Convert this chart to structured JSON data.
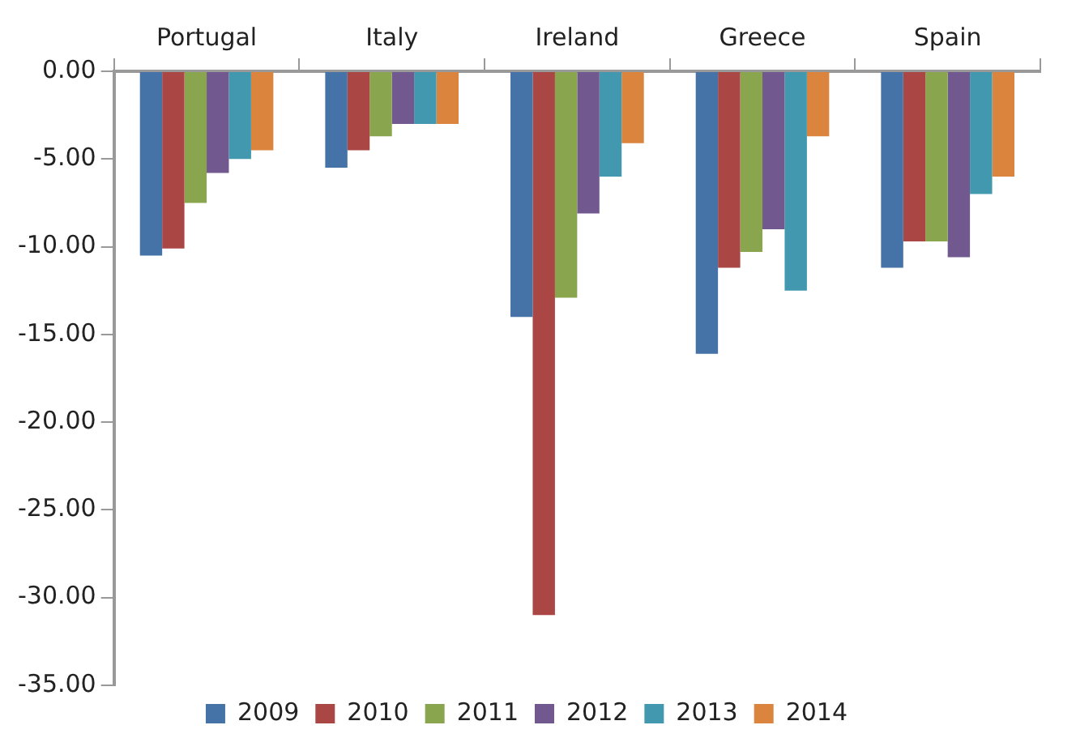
{
  "chart_data": {
    "type": "bar",
    "categories": [
      "Portugal",
      "Italy",
      "Ireland",
      "Greece",
      "Spain"
    ],
    "series": [
      {
        "name": "2009",
        "color": "#4572a7",
        "values": [
          -10.5,
          -5.5,
          -14.0,
          -16.1,
          -11.2
        ]
      },
      {
        "name": "2010",
        "color": "#aa4643",
        "values": [
          -10.1,
          -4.5,
          -31.0,
          -11.2,
          -9.7
        ]
      },
      {
        "name": "2011",
        "color": "#89a54e",
        "values": [
          -7.5,
          -3.7,
          -12.9,
          -10.3,
          -9.7
        ]
      },
      {
        "name": "2012",
        "color": "#71588f",
        "values": [
          -5.8,
          -3.0,
          -8.1,
          -9.0,
          -10.6
        ]
      },
      {
        "name": "2013",
        "color": "#4198af",
        "values": [
          -5.0,
          -3.0,
          -6.0,
          -12.5,
          -7.0
        ]
      },
      {
        "name": "2014",
        "color": "#db843d",
        "values": [
          -4.5,
          -3.0,
          -4.1,
          -3.7,
          -6.0
        ]
      }
    ],
    "ylim": [
      -35,
      0
    ],
    "yticks": [
      {
        "value": 0,
        "label": "0.00"
      },
      {
        "value": -5,
        "label": "-5.00"
      },
      {
        "value": -10,
        "label": "-10.00"
      },
      {
        "value": -15,
        "label": "-15.00"
      },
      {
        "value": -20,
        "label": "-20.00"
      },
      {
        "value": -25,
        "label": "-25.00"
      },
      {
        "value": -30,
        "label": "-30.00"
      },
      {
        "value": -35,
        "label": "-35.00"
      }
    ],
    "grid": false,
    "legend": "bottom"
  }
}
